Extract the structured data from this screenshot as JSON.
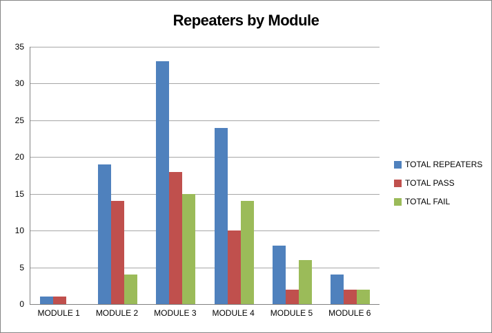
{
  "chart_data": {
    "type": "bar",
    "title": "Repeaters by Module",
    "categories": [
      "MODULE 1",
      "MODULE 2",
      "MODULE 3",
      "MODULE 4",
      "MODULE 5",
      "MODULE 6"
    ],
    "series": [
      {
        "name": "TOTAL REPEATERS",
        "color": "#4F81BD",
        "values": [
          1,
          19,
          33,
          24,
          8,
          4
        ]
      },
      {
        "name": "TOTAL PASS",
        "color": "#C0504D",
        "values": [
          1,
          14,
          18,
          10,
          2,
          2
        ]
      },
      {
        "name": "TOTAL FAIL",
        "color": "#9BBB59",
        "values": [
          0,
          4,
          15,
          14,
          6,
          2
        ]
      }
    ],
    "xlabel": "",
    "ylabel": "",
    "ylim": [
      0,
      35
    ],
    "ytick_step": 5,
    "grid": true,
    "legend_position": "right"
  },
  "colors": {
    "gridline": "#A6A6A6",
    "axis_line": "#808080",
    "frame_border": "#858585",
    "text": "#000000",
    "background": "#FFFFFF"
  }
}
